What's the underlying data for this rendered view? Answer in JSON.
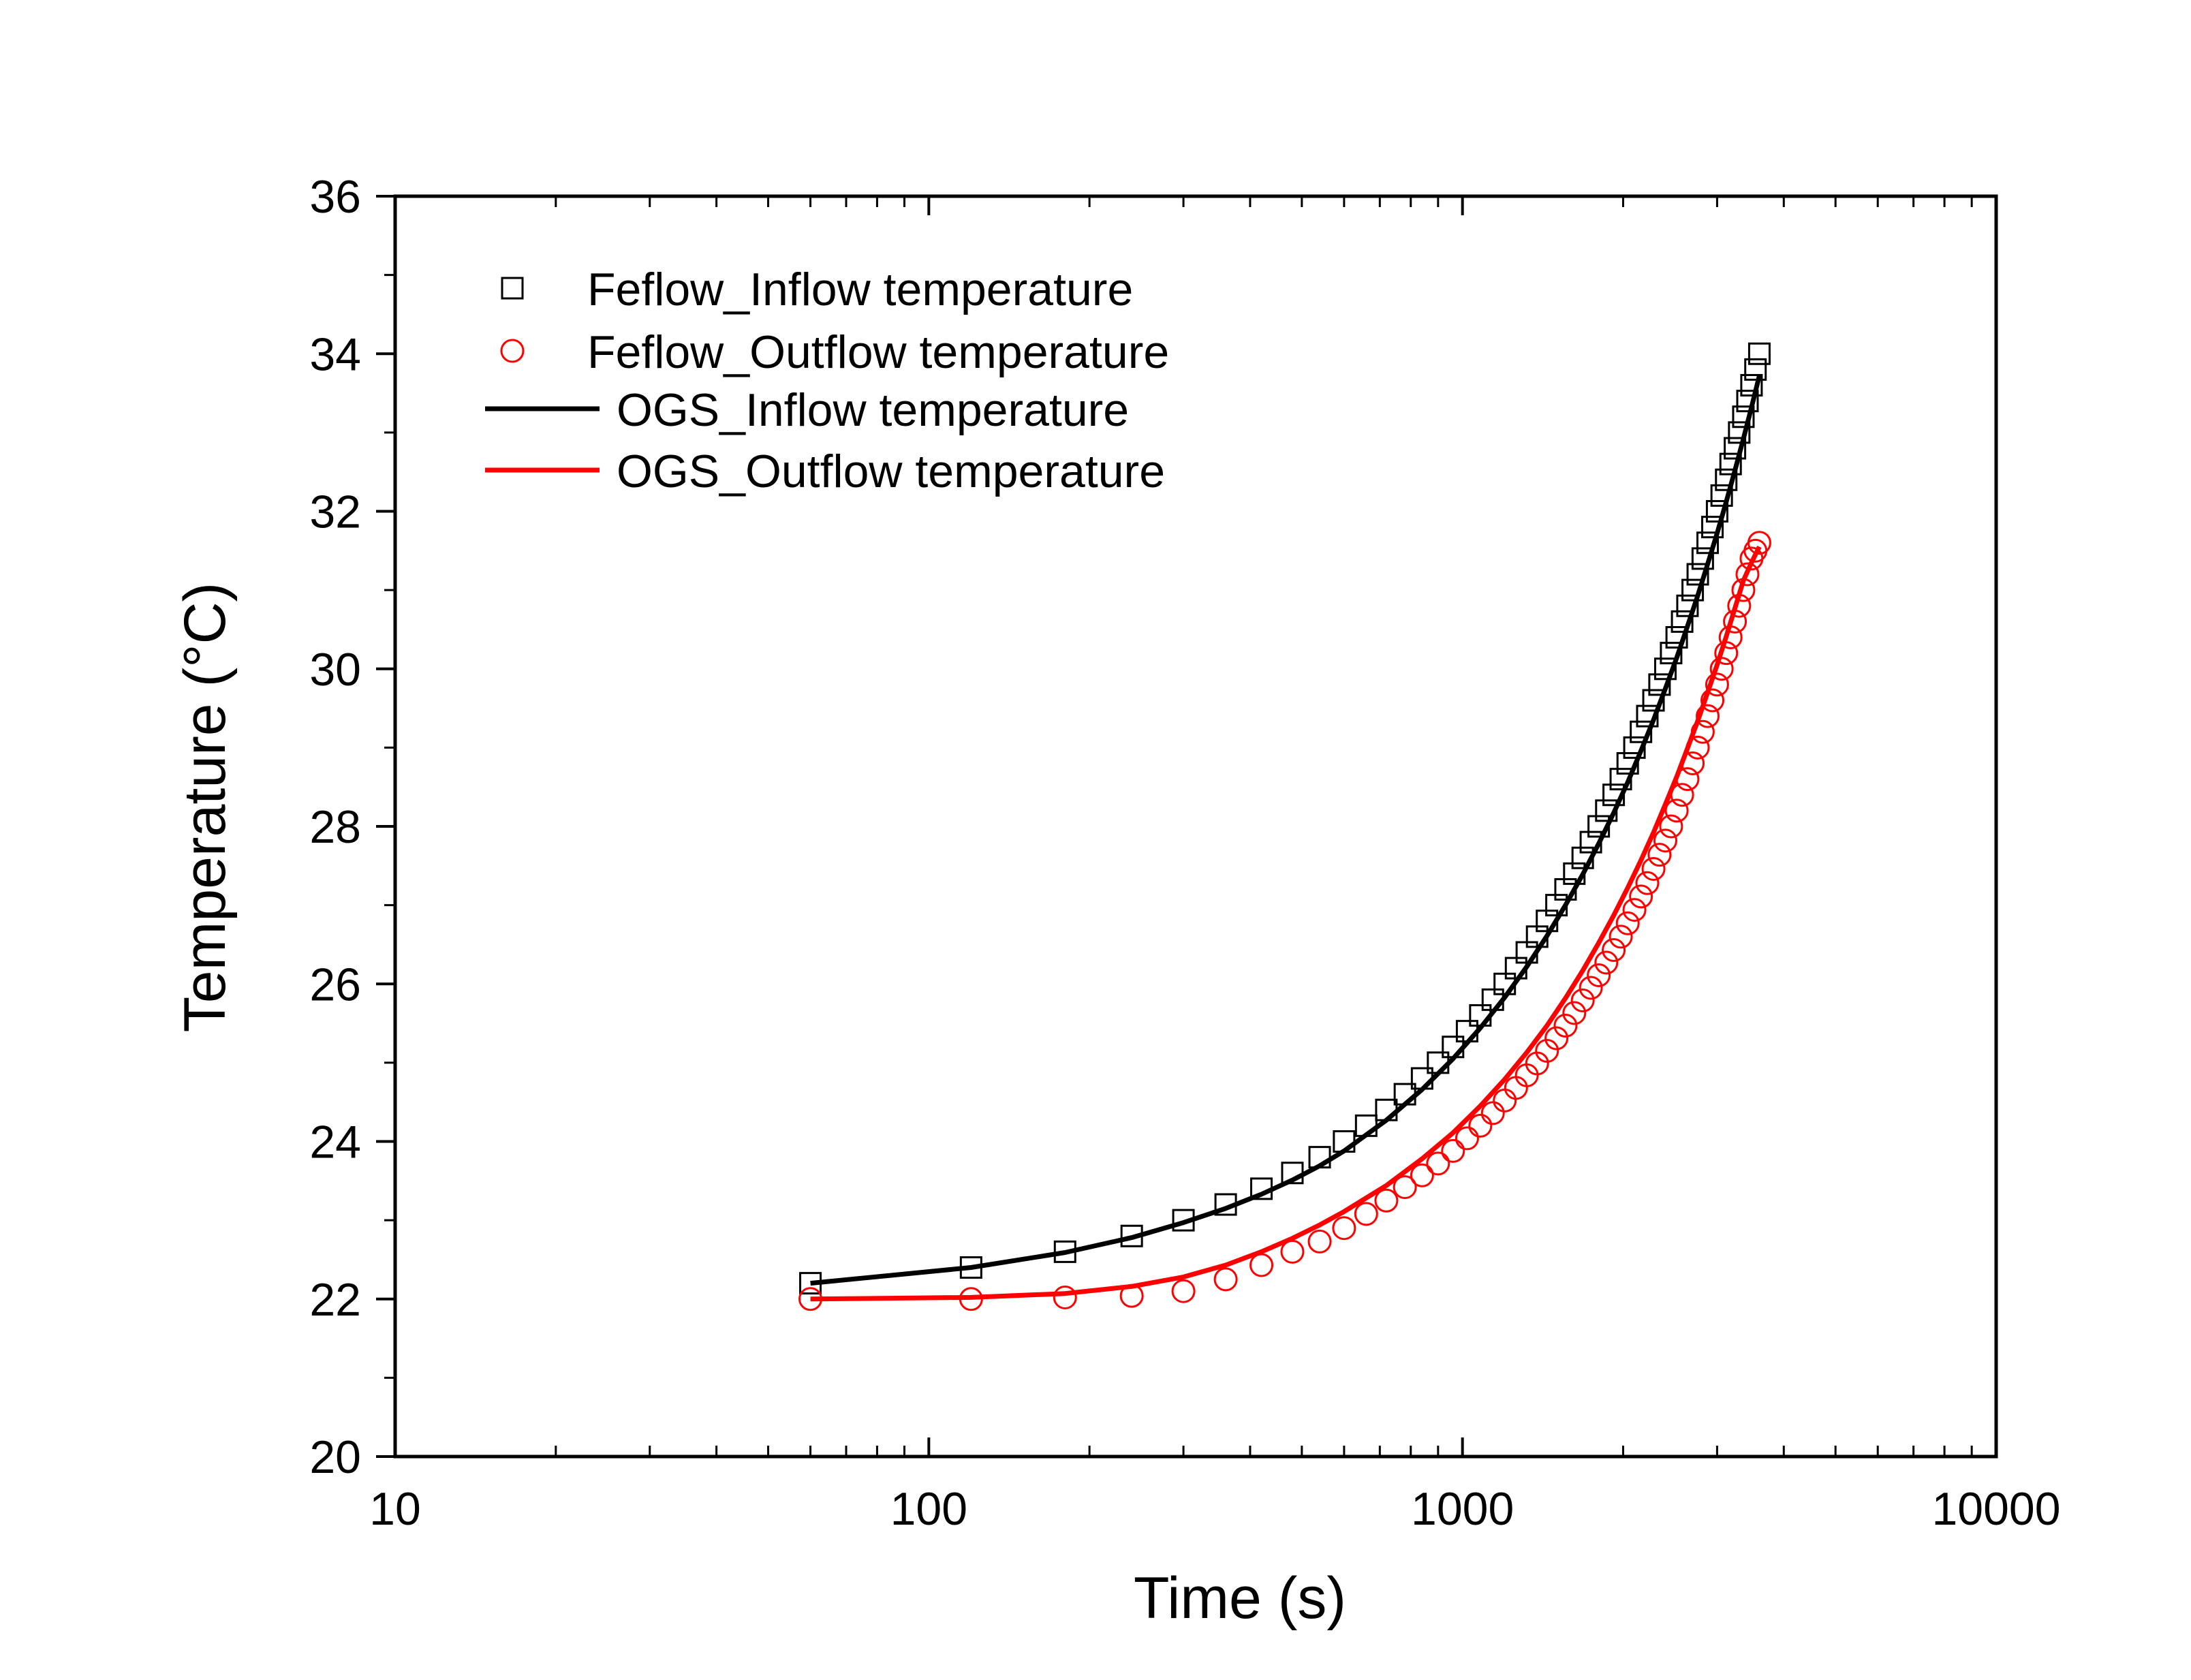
{
  "chart_data": {
    "type": "scatter",
    "title": "",
    "xlabel": "Time (s)",
    "ylabel": "Temperature (°C)",
    "x_scale": "log",
    "xlim": [
      10,
      10000
    ],
    "ylim": [
      20,
      36
    ],
    "x_ticks": [
      10,
      100,
      1000,
      10000
    ],
    "x_tick_labels": [
      "10",
      "100",
      "1000",
      "10000"
    ],
    "y_ticks": [
      20,
      22,
      24,
      26,
      28,
      30,
      32,
      34,
      36
    ],
    "y_tick_labels": [
      "20",
      "22",
      "24",
      "26",
      "28",
      "30",
      "32",
      "34",
      "36"
    ],
    "grid": false,
    "legend_position": "top-left",
    "series": [
      {
        "name": "Feflow_Inflow temperature",
        "kind": "markers",
        "marker": "square-open",
        "color": "#000000",
        "x": [
          60,
          120,
          180,
          240,
          300,
          360,
          420,
          480,
          540,
          600,
          660,
          720,
          780,
          840,
          900,
          960,
          1020,
          1080,
          1140,
          1200,
          1260,
          1320,
          1380,
          1440,
          1500,
          1560,
          1620,
          1680,
          1740,
          1800,
          1860,
          1920,
          1980,
          2040,
          2100,
          2160,
          2220,
          2280,
          2340,
          2400,
          2460,
          2520,
          2580,
          2640,
          2700,
          2760,
          2820,
          2880,
          2940,
          3000,
          3060,
          3120,
          3180,
          3240,
          3300,
          3360,
          3420,
          3480,
          3540,
          3600
        ],
        "y": [
          22.2,
          22.4,
          22.6,
          22.8,
          23.0,
          23.2,
          23.4,
          23.6,
          23.8,
          24.0,
          24.2,
          24.4,
          24.6,
          24.8,
          25.0,
          25.2,
          25.4,
          25.6,
          25.8,
          26.0,
          26.2,
          26.4,
          26.6,
          26.8,
          27.0,
          27.2,
          27.4,
          27.6,
          27.8,
          28.0,
          28.2,
          28.4,
          28.6,
          28.8,
          29.0,
          29.2,
          29.4,
          29.6,
          29.8,
          30.0,
          30.2,
          30.4,
          30.6,
          30.8,
          31.0,
          31.2,
          31.4,
          31.6,
          31.8,
          32.0,
          32.2,
          32.4,
          32.6,
          32.8,
          33.0,
          33.2,
          33.4,
          33.6,
          33.8,
          34.0
        ]
      },
      {
        "name": "Feflow_Outflow temperature",
        "kind": "markers",
        "marker": "circle-open",
        "color": "#ff0000",
        "x": [
          60,
          120,
          180,
          240,
          300,
          360,
          420,
          480,
          540,
          600,
          660,
          720,
          780,
          840,
          900,
          960,
          1020,
          1080,
          1140,
          1200,
          1260,
          1320,
          1380,
          1440,
          1500,
          1560,
          1620,
          1680,
          1740,
          1800,
          1860,
          1920,
          1980,
          2040,
          2100,
          2160,
          2220,
          2280,
          2340,
          2400,
          2460,
          2520,
          2580,
          2640,
          2700,
          2760,
          2820,
          2880,
          2940,
          3000,
          3060,
          3120,
          3180,
          3240,
          3300,
          3360,
          3420,
          3480,
          3540,
          3600
        ],
        "y": [
          22.0,
          22.0,
          22.02,
          22.04,
          22.1,
          22.25,
          22.43,
          22.6,
          22.73,
          22.9,
          23.08,
          23.25,
          23.42,
          23.57,
          23.72,
          23.88,
          24.04,
          24.2,
          24.36,
          24.52,
          24.68,
          24.84,
          24.99,
          25.15,
          25.31,
          25.47,
          25.63,
          25.79,
          25.95,
          26.11,
          26.27,
          26.43,
          26.6,
          26.77,
          26.94,
          27.11,
          27.28,
          27.46,
          27.64,
          27.82,
          28.0,
          28.2,
          28.4,
          28.6,
          28.8,
          29.0,
          29.2,
          29.4,
          29.6,
          29.8,
          30.0,
          30.2,
          30.4,
          30.6,
          30.8,
          31.0,
          31.2,
          31.4,
          31.5,
          31.6
        ]
      },
      {
        "name": "OGS_Inflow temperature",
        "kind": "line",
        "color": "#000000",
        "x": [
          60,
          120,
          180,
          240,
          300,
          360,
          420,
          480,
          540,
          600,
          720,
          840,
          960,
          1080,
          1200,
          1320,
          1440,
          1560,
          1680,
          1800,
          1920,
          2040,
          2160,
          2280,
          2400,
          2520,
          2640,
          2760,
          2880,
          3000,
          3120,
          3240,
          3360,
          3480,
          3600
        ],
        "y": [
          22.2,
          22.4,
          22.59,
          22.78,
          22.97,
          23.15,
          23.33,
          23.51,
          23.69,
          23.88,
          24.27,
          24.66,
          25.05,
          25.44,
          25.83,
          26.22,
          26.61,
          27.0,
          27.39,
          27.78,
          28.17,
          28.56,
          28.96,
          29.35,
          29.75,
          30.14,
          30.54,
          30.93,
          31.33,
          31.72,
          32.12,
          32.52,
          32.92,
          33.32,
          33.72
        ]
      },
      {
        "name": "OGS_Outflow temperature",
        "kind": "line",
        "color": "#ff0000",
        "x": [
          60,
          120,
          180,
          240,
          300,
          360,
          420,
          480,
          540,
          600,
          720,
          840,
          960,
          1080,
          1200,
          1320,
          1440,
          1560,
          1680,
          1800,
          1920,
          2040,
          2160,
          2280,
          2400,
          2520,
          2640,
          2760,
          2880,
          3000,
          3120,
          3240,
          3360,
          3480,
          3600
        ],
        "y": [
          22.0,
          22.02,
          22.07,
          22.16,
          22.28,
          22.43,
          22.6,
          22.77,
          22.94,
          23.11,
          23.44,
          23.78,
          24.11,
          24.45,
          24.79,
          25.13,
          25.47,
          25.82,
          26.17,
          26.52,
          26.87,
          27.22,
          27.57,
          27.92,
          28.28,
          28.63,
          28.99,
          29.34,
          29.7,
          30.05,
          30.41,
          30.77,
          31.12,
          31.35,
          31.55
        ]
      }
    ]
  }
}
